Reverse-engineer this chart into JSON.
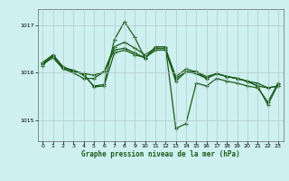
{
  "title": "Graphe pression niveau de la mer (hPa)",
  "background_color": "#cff0f0",
  "grid_color": "#b0c8c8",
  "line_color": "#1a5c1a",
  "marker_color": "#1a5c1a",
  "xlim": [
    -0.5,
    23.5
  ],
  "ylim": [
    1014.55,
    1017.35
  ],
  "yticks": [
    1015,
    1016,
    1017
  ],
  "xticks": [
    0,
    1,
    2,
    3,
    4,
    5,
    6,
    7,
    8,
    9,
    10,
    11,
    12,
    13,
    14,
    15,
    16,
    17,
    18,
    19,
    20,
    21,
    22,
    23
  ],
  "series": [
    [
      1016.2,
      1016.35,
      1016.1,
      1016.05,
      1015.95,
      1015.72,
      1015.75,
      1016.7,
      1017.08,
      1016.75,
      1016.3,
      1016.55,
      1016.55,
      1014.82,
      1014.92,
      1015.78,
      1015.72,
      1015.88,
      1015.82,
      1015.78,
      1015.72,
      1015.68,
      1015.38,
      1015.78
    ],
    [
      1016.22,
      1016.38,
      1016.12,
      1016.05,
      1015.98,
      1015.95,
      1016.02,
      1016.55,
      1016.65,
      1016.52,
      1016.38,
      1016.52,
      1016.52,
      1015.92,
      1016.08,
      1016.02,
      1015.92,
      1015.98,
      1015.92,
      1015.88,
      1015.82,
      1015.78,
      1015.68,
      1015.72
    ],
    [
      1016.18,
      1016.32,
      1016.08,
      1016.0,
      1015.88,
      1015.88,
      1016.02,
      1016.48,
      1016.52,
      1016.42,
      1016.32,
      1016.48,
      1016.48,
      1015.82,
      1016.02,
      1015.98,
      1015.88,
      1015.98,
      1015.92,
      1015.88,
      1015.82,
      1015.72,
      1015.68,
      1015.72
    ],
    [
      1016.15,
      1016.38,
      1016.12,
      1016.02,
      1015.98,
      1015.7,
      1015.72,
      1016.42,
      1016.48,
      1016.38,
      1016.32,
      1016.48,
      1016.48,
      1015.88,
      1016.02,
      1016.02,
      1015.88,
      1015.98,
      1015.92,
      1015.88,
      1015.82,
      1015.72,
      1015.32,
      1015.75
    ]
  ]
}
